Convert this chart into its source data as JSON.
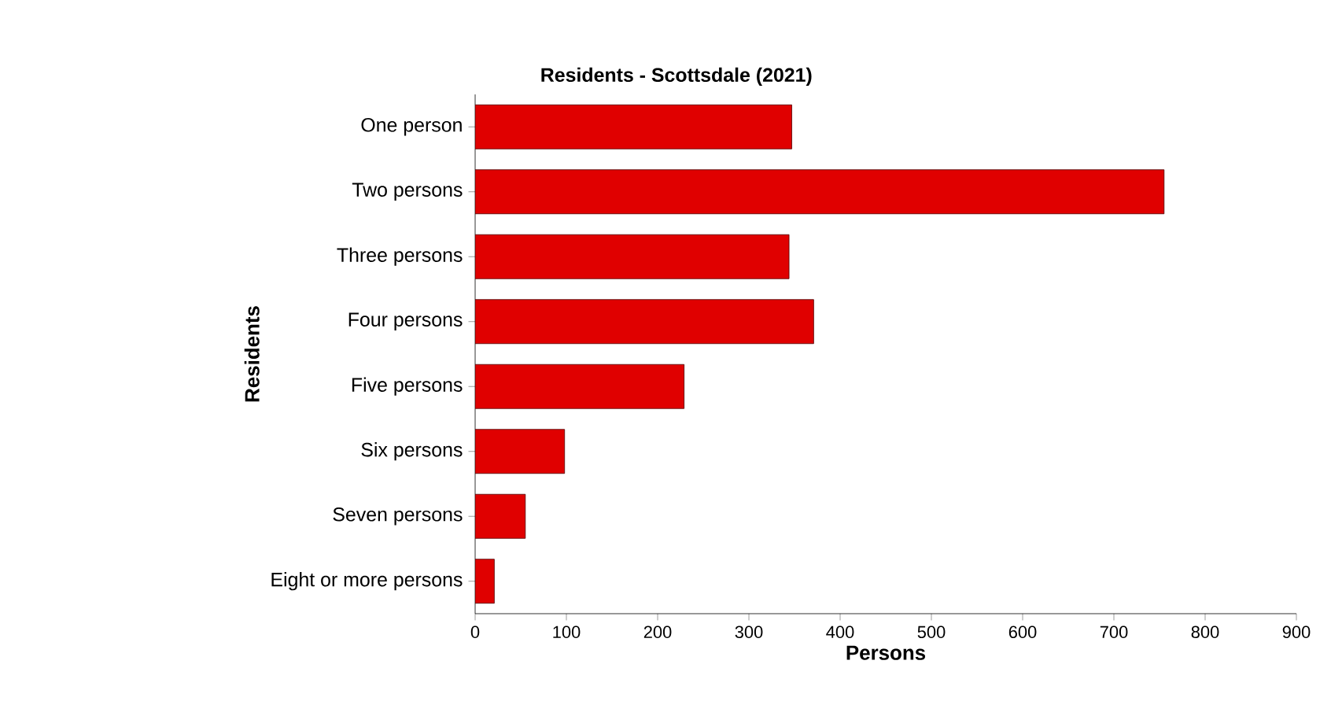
{
  "chart_data": {
    "type": "bar",
    "orientation": "horizontal",
    "title": "Residents - Scottsdale (2021)",
    "xlabel": "Persons",
    "ylabel": "Residents",
    "categories": [
      "One person",
      "Two persons",
      "Three persons",
      "Four persons",
      "Five persons",
      "Six persons",
      "Seven persons",
      "Eight or more persons"
    ],
    "values": [
      347,
      755,
      344,
      371,
      229,
      98,
      55,
      21
    ],
    "color": "#e00000",
    "xlim": [
      0,
      900
    ],
    "xticks": [
      0,
      100,
      200,
      300,
      400,
      500,
      600,
      700,
      800,
      900
    ],
    "grid": false
  }
}
